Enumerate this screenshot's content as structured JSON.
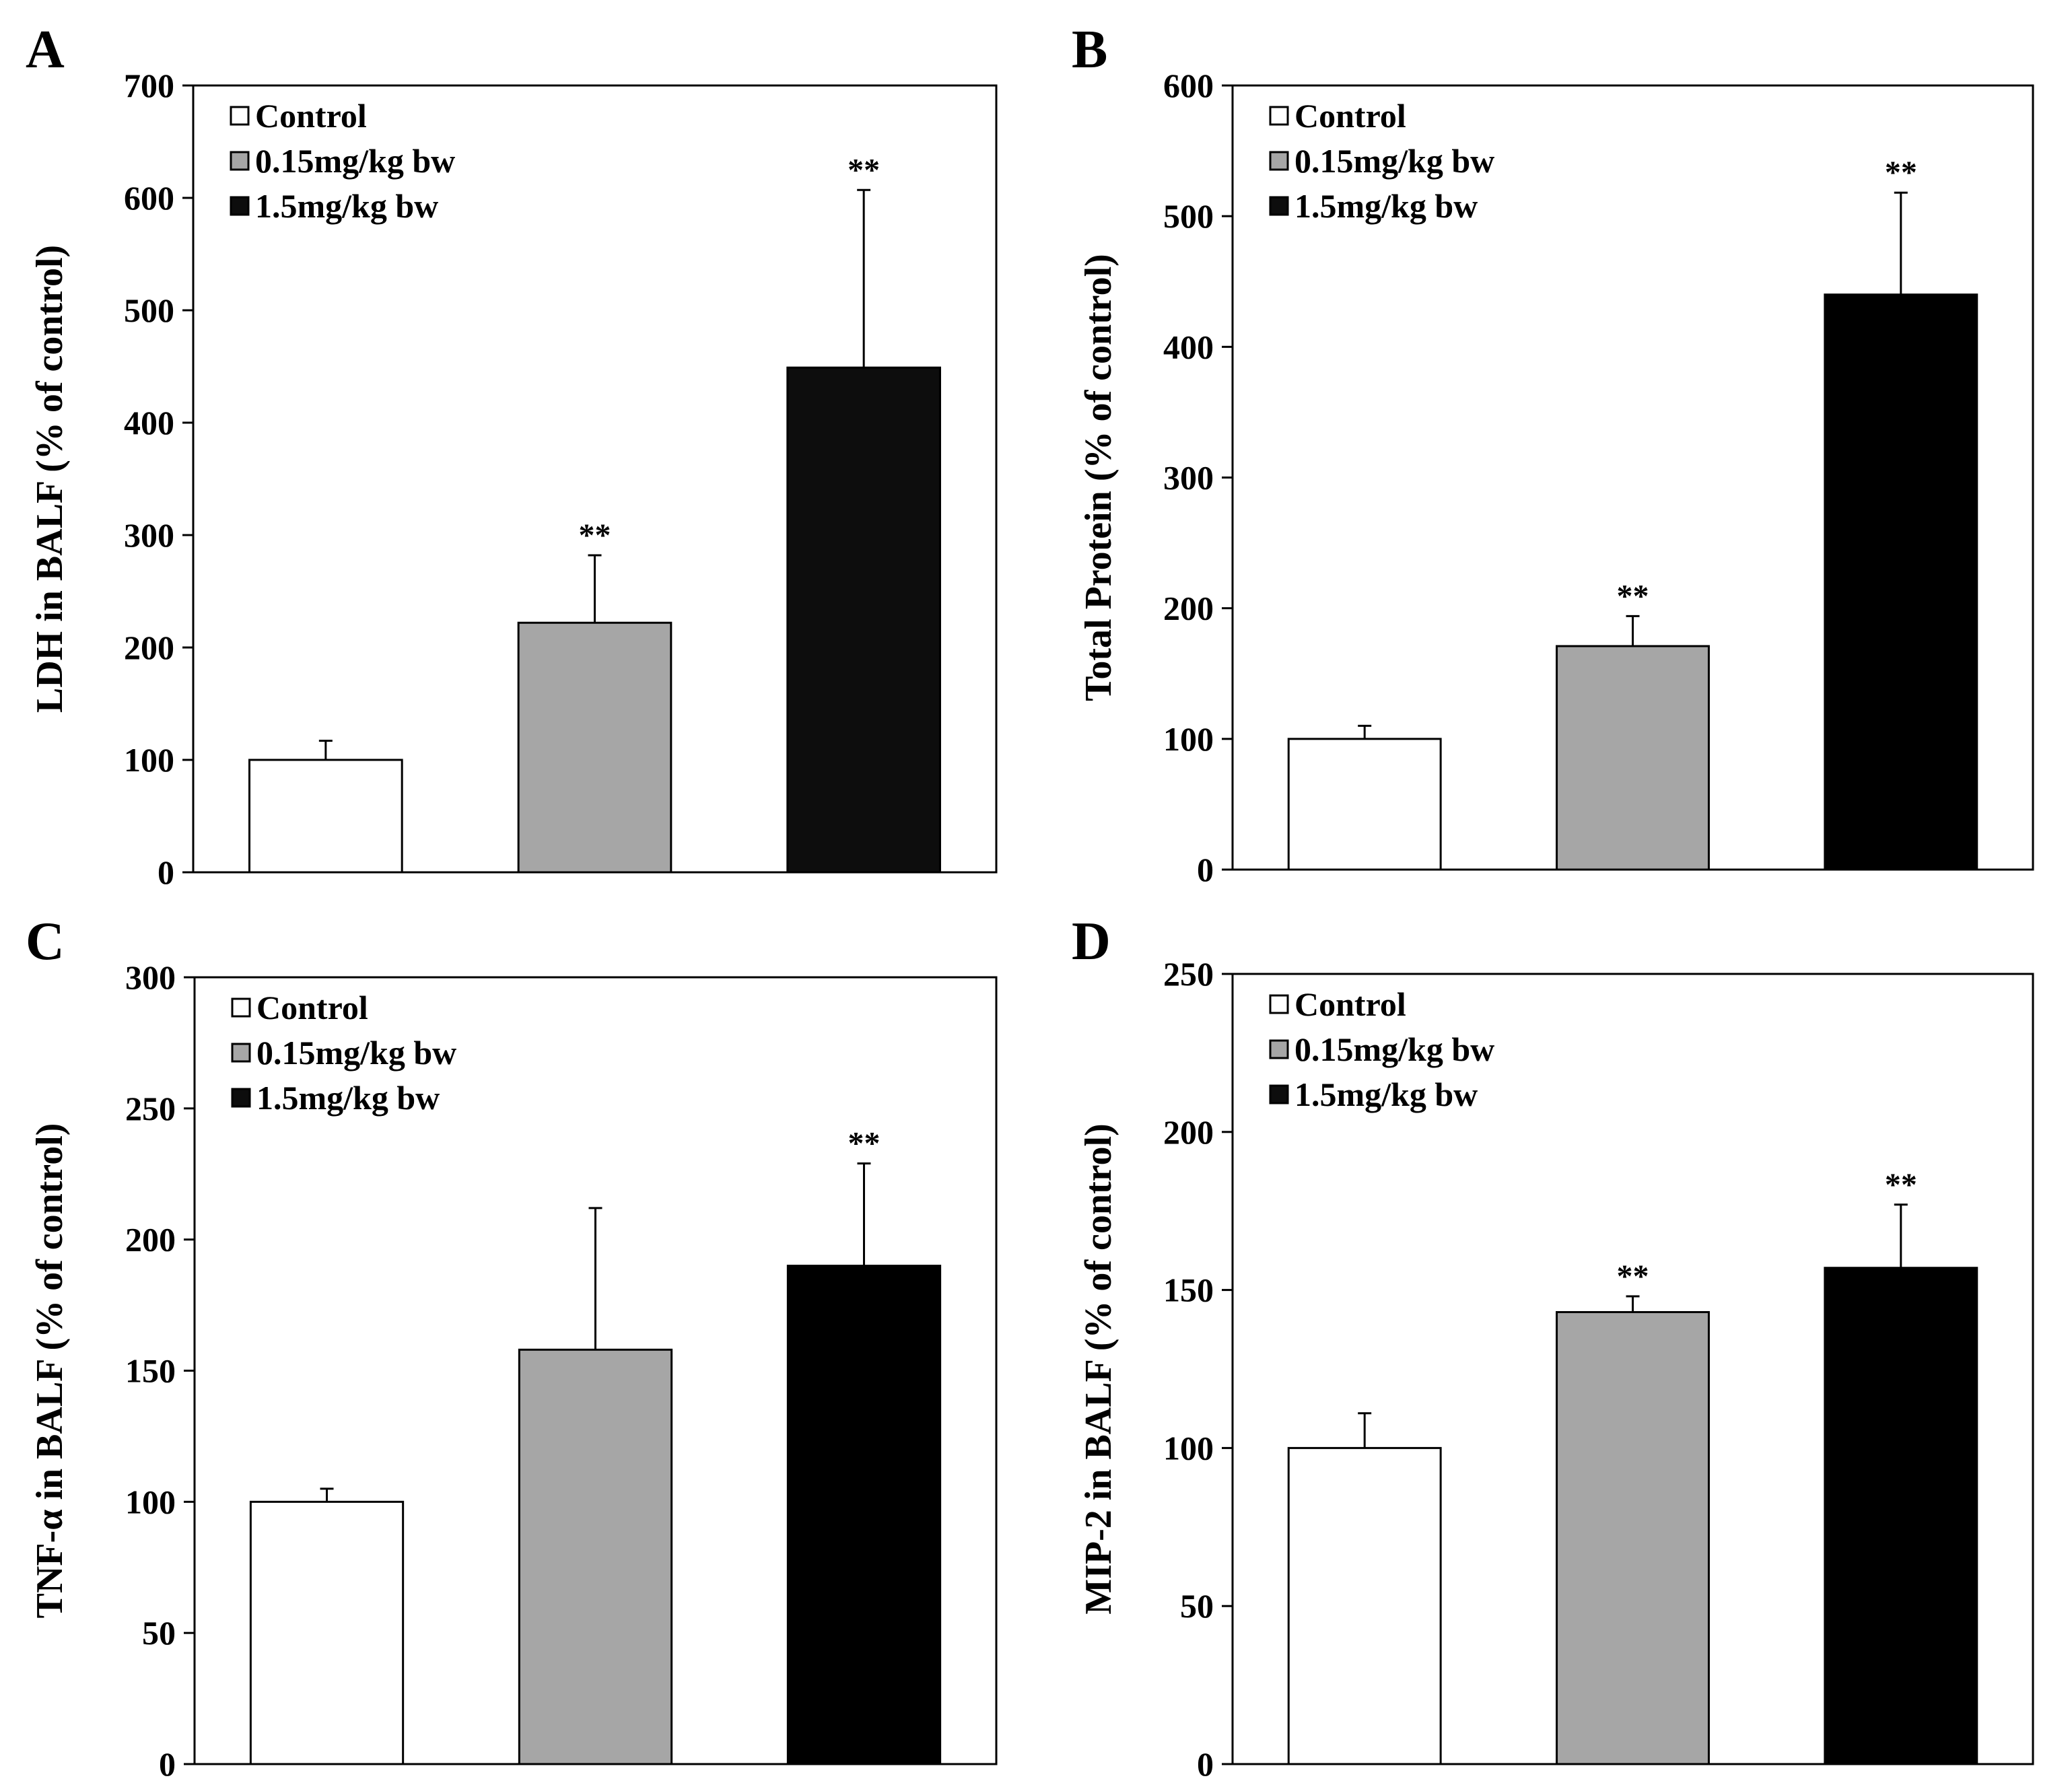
{
  "figure": {
    "legend_colors": [
      "#ffffff",
      "#a6a6a6",
      "#0d0d0d"
    ]
  },
  "chart_data": [
    {
      "type": "bar",
      "panel": "A",
      "ylabel": "LDH in BALF (% of control)",
      "ylim": [
        0,
        700
      ],
      "yticks": [
        0,
        100,
        200,
        300,
        400,
        500,
        600,
        700
      ],
      "legend": [
        "Control",
        "0.15mg/kg bw",
        "1.5mg/kg bw"
      ],
      "legend_position": "top-left",
      "categories": [
        "Control",
        "0.15mg/kg bw",
        "1.5mg/kg bw"
      ],
      "values": [
        100,
        222,
        449
      ],
      "errors": [
        17,
        60,
        158
      ],
      "significance": [
        "",
        "**",
        "**"
      ],
      "colors": [
        "#ffffff",
        "#a6a6a6",
        "#0d0d0d"
      ]
    },
    {
      "type": "bar",
      "panel": "B",
      "ylabel": "Total Protein (% of control)",
      "ylim": [
        0,
        600
      ],
      "yticks": [
        0,
        100,
        200,
        300,
        400,
        500,
        600
      ],
      "legend": [
        "Control",
        "0.15mg/kg bw",
        "1.5mg/kg bw"
      ],
      "legend_position": "top-left",
      "categories": [
        "Control",
        "0.15mg/kg bw",
        "1.5mg/kg bw"
      ],
      "values": [
        100,
        171,
        440
      ],
      "errors": [
        10,
        23,
        78
      ],
      "significance": [
        "",
        "**",
        "**"
      ],
      "colors": [
        "#ffffff",
        "#a6a6a6",
        "#000000"
      ]
    },
    {
      "type": "bar",
      "panel": "C",
      "ylabel": "TNF-α in BALF (% of control)",
      "ylim": [
        0,
        300
      ],
      "yticks": [
        0,
        50,
        100,
        150,
        200,
        250,
        300
      ],
      "legend": [
        "Control",
        "0.15mg/kg bw",
        "1.5mg/kg bw"
      ],
      "legend_position": "top-left",
      "categories": [
        "Control",
        "0.15mg/kg bw",
        "1.5mg/kg bw"
      ],
      "values": [
        100,
        158,
        190
      ],
      "errors": [
        5,
        54,
        39
      ],
      "significance": [
        "",
        "",
        "**"
      ],
      "colors": [
        "#ffffff",
        "#a6a6a6",
        "#000000"
      ]
    },
    {
      "type": "bar",
      "panel": "D",
      "ylabel": "MIP-2 in BALF (% of control)",
      "ylim": [
        0,
        250
      ],
      "yticks": [
        0,
        50,
        100,
        150,
        200,
        250
      ],
      "legend": [
        "Control",
        "0.15mg/kg bw",
        "1.5mg/kg bw"
      ],
      "legend_position": "top-left",
      "categories": [
        "Control",
        "0.15mg/kg bw",
        "1.5mg/kg bw"
      ],
      "values": [
        100,
        143,
        157
      ],
      "errors": [
        11,
        5,
        20
      ],
      "significance": [
        "",
        "**",
        "**"
      ],
      "colors": [
        "#ffffff",
        "#a6a6a6",
        "#000000"
      ]
    }
  ]
}
